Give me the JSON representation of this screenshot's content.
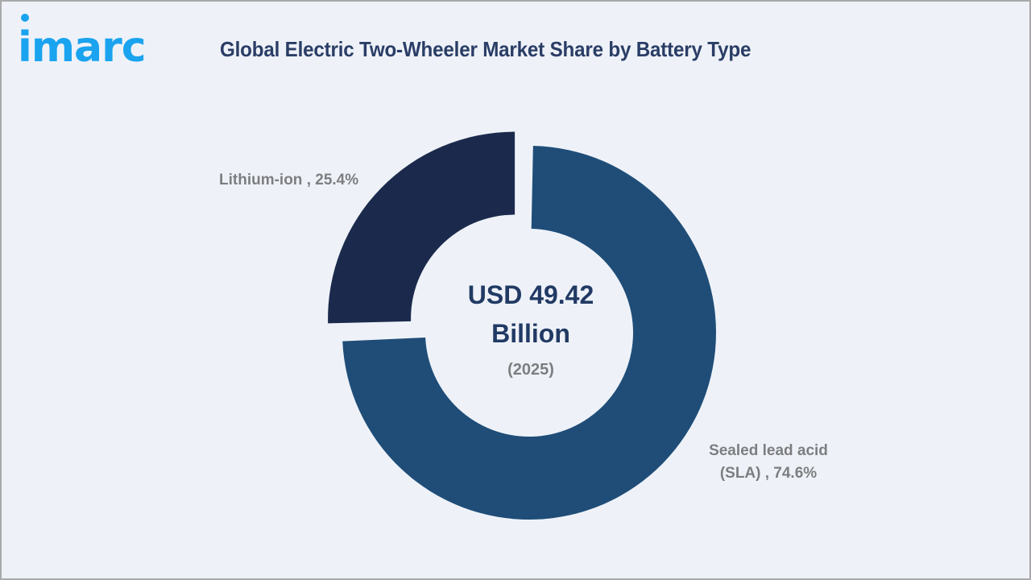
{
  "brand": {
    "logo_text": "imarc",
    "logo_color": "#1aa3ef"
  },
  "header": {
    "title": "Global Electric Two-Wheeler Market Share by Battery Type"
  },
  "center": {
    "value_line1": "USD 49.42",
    "value_line2": "Billion",
    "year": "(2025)"
  },
  "labels": {
    "lithium": "Lithium-ion , 25.4%",
    "sla_line1": "Sealed lead acid",
    "sla_line2": "(SLA) , 74.6%"
  },
  "colors": {
    "background": "#eef2f8",
    "lithium_slice": "#1b2a4c",
    "sla_slice": "#1f4d78",
    "title": "#2a3d66",
    "label_grey": "#7d7e80"
  },
  "chart_data": {
    "type": "pie",
    "subtype": "donut",
    "title": "Global Electric Two-Wheeler Market Share by Battery Type",
    "categories": [
      "Lithium-ion",
      "Sealed lead acid (SLA)"
    ],
    "values": [
      25.4,
      74.6
    ],
    "unit": "%",
    "center_annotation": "USD 49.42 Billion (2025)",
    "exploded": [
      "Lithium-ion"
    ],
    "colors": [
      "#1b2a4c",
      "#1f4d78"
    ],
    "legend": "none (inline data labels)"
  }
}
